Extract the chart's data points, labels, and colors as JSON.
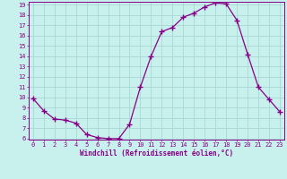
{
  "x": [
    0,
    1,
    2,
    3,
    4,
    5,
    6,
    7,
    8,
    9,
    10,
    11,
    12,
    13,
    14,
    15,
    16,
    17,
    18,
    19,
    20,
    21,
    22,
    23
  ],
  "y": [
    9.9,
    8.7,
    7.9,
    7.8,
    7.5,
    6.4,
    6.1,
    6.0,
    6.0,
    7.4,
    11.0,
    14.0,
    16.4,
    16.8,
    17.8,
    18.2,
    18.8,
    19.2,
    19.1,
    17.5,
    14.2,
    11.0,
    9.8,
    8.6
  ],
  "line_color": "#880088",
  "marker": "+",
  "marker_size": 4,
  "bg_color": "#c8f0ec",
  "grid_color": "#a8d8d4",
  "xlabel": "Windchill (Refroidissement éolien,°C)",
  "xlabel_color": "#880088",
  "tick_color": "#880088",
  "ylim_min": 6,
  "ylim_max": 19,
  "xlim_min": 0,
  "xlim_max": 23,
  "yticks": [
    6,
    7,
    8,
    9,
    10,
    11,
    12,
    13,
    14,
    15,
    16,
    17,
    18,
    19
  ],
  "xticks": [
    0,
    1,
    2,
    3,
    4,
    5,
    6,
    7,
    8,
    9,
    10,
    11,
    12,
    13,
    14,
    15,
    16,
    17,
    18,
    19,
    20,
    21,
    22,
    23
  ],
  "tick_fontsize": 5,
  "xlabel_fontsize": 5.5,
  "linewidth": 0.9
}
